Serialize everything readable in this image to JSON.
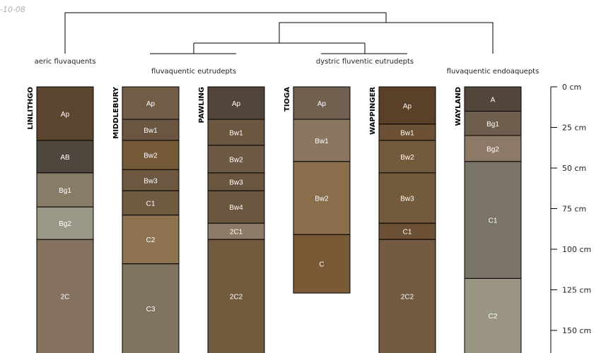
{
  "stamp": "-10-08",
  "groups": [
    "aeric fluvaquents",
    "fluvaquentic eutrudepts",
    "dystric fluventic eutrudepts",
    "fluvaquentic endoaquepts"
  ],
  "depth_unit": "cm",
  "depth_ticks": [
    0,
    25,
    50,
    75,
    100,
    125,
    150
  ],
  "depth_tick_labels": [
    "0 cm",
    "25 cm",
    "50 cm",
    "75 cm",
    "100 cm",
    "125 cm",
    "150 cm"
  ],
  "profiles": [
    {
      "name": "LINLITHGO",
      "horizons": [
        {
          "name": "Ap",
          "top": 0,
          "bottom": 33,
          "color": "#5c4630"
        },
        {
          "name": "AB",
          "top": 33,
          "bottom": 53,
          "color": "#4f463e"
        },
        {
          "name": "Bg1",
          "top": 53,
          "bottom": 74,
          "color": "#887c68"
        },
        {
          "name": "Bg2",
          "top": 74,
          "bottom": 94,
          "color": "#9a9786"
        },
        {
          "name": "2C",
          "top": 94,
          "bottom": 165,
          "color": "#84725e"
        }
      ]
    },
    {
      "name": "MIDDLEBURY",
      "horizons": [
        {
          "name": "Ap",
          "top": 0,
          "bottom": 20,
          "color": "#735c45"
        },
        {
          "name": "Bw1",
          "top": 20,
          "bottom": 33,
          "color": "#6a5540"
        },
        {
          "name": "Bw2",
          "top": 33,
          "bottom": 51,
          "color": "#755a38"
        },
        {
          "name": "Bw3",
          "top": 51,
          "bottom": 64,
          "color": "#6c5840"
        },
        {
          "name": "C1",
          "top": 64,
          "bottom": 79,
          "color": "#705a40"
        },
        {
          "name": "C2",
          "top": 79,
          "bottom": 109,
          "color": "#8e7350"
        },
        {
          "name": "C3",
          "top": 109,
          "bottom": 165,
          "color": "#80745f"
        }
      ]
    },
    {
      "name": "PAWLING",
      "horizons": [
        {
          "name": "Ap",
          "top": 0,
          "bottom": 20,
          "color": "#52443a"
        },
        {
          "name": "Bw1",
          "top": 20,
          "bottom": 36,
          "color": "#6b5640"
        },
        {
          "name": "Bw2",
          "top": 36,
          "bottom": 53,
          "color": "#6d5a44"
        },
        {
          "name": "Bw3",
          "top": 53,
          "bottom": 64,
          "color": "#6b5640"
        },
        {
          "name": "Bw4",
          "top": 64,
          "bottom": 84,
          "color": "#6b5640"
        },
        {
          "name": "2C1",
          "top": 84,
          "bottom": 94,
          "color": "#8b7a68"
        },
        {
          "name": "2C2",
          "top": 94,
          "bottom": 165,
          "color": "#725a3e"
        }
      ]
    },
    {
      "name": "TIOGA",
      "horizons": [
        {
          "name": "Ap",
          "top": 0,
          "bottom": 20,
          "color": "#706050"
        },
        {
          "name": "Bw1",
          "top": 20,
          "bottom": 46,
          "color": "#8b7760"
        },
        {
          "name": "Bw2",
          "top": 46,
          "bottom": 91,
          "color": "#8a6e4c"
        },
        {
          "name": "C",
          "top": 91,
          "bottom": 127,
          "color": "#7a5a36"
        }
      ]
    },
    {
      "name": "WAPPINGER",
      "horizons": [
        {
          "name": "Ap",
          "top": 0,
          "bottom": 23,
          "color": "#5a4028"
        },
        {
          "name": "Bw1",
          "top": 23,
          "bottom": 33,
          "color": "#6c5035"
        },
        {
          "name": "Bw2",
          "top": 33,
          "bottom": 53,
          "color": "#735a3c"
        },
        {
          "name": "Bw3",
          "top": 53,
          "bottom": 84,
          "color": "#735a3c"
        },
        {
          "name": "C1",
          "top": 84,
          "bottom": 94,
          "color": "#6c5035"
        },
        {
          "name": "2C2",
          "top": 94,
          "bottom": 165,
          "color": "#735a40"
        }
      ]
    },
    {
      "name": "WAYLAND",
      "horizons": [
        {
          "name": "A",
          "top": 0,
          "bottom": 15,
          "color": "#52463a"
        },
        {
          "name": "Bg1",
          "top": 15,
          "bottom": 30,
          "color": "#6e5e4d"
        },
        {
          "name": "Bg2",
          "top": 30,
          "bottom": 46,
          "color": "#8c7966"
        },
        {
          "name": "C1",
          "top": 46,
          "bottom": 118,
          "color": "#7a7468"
        },
        {
          "name": "C2",
          "top": 118,
          "bottom": 165,
          "color": "#9a9582"
        }
      ]
    }
  ]
}
